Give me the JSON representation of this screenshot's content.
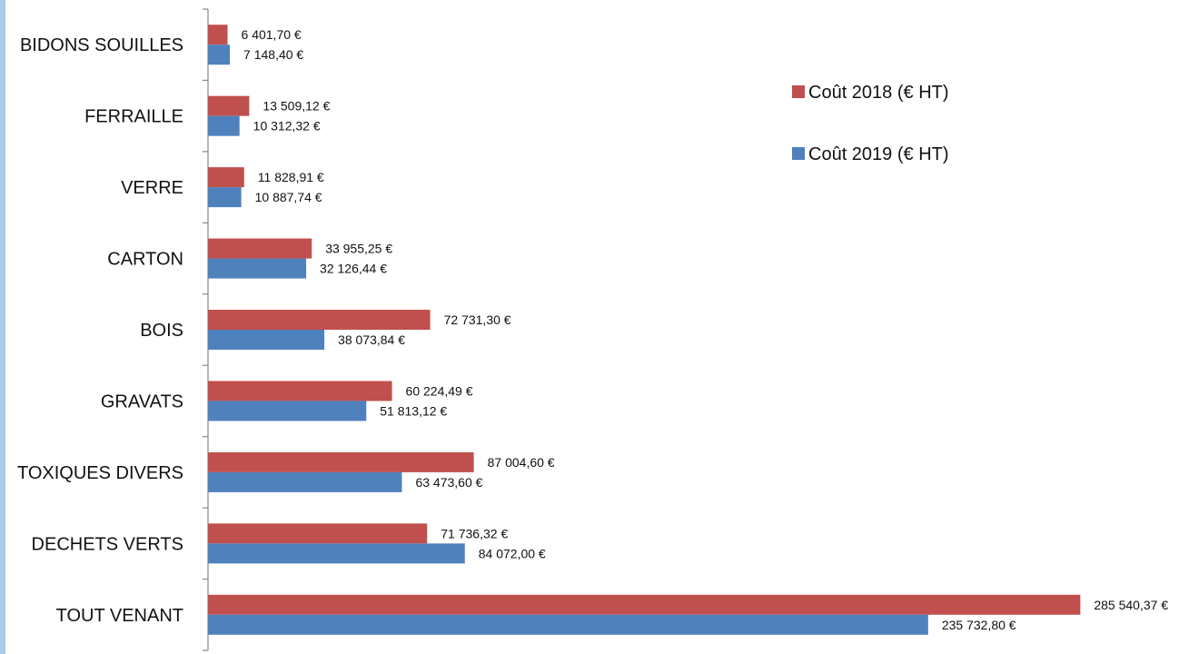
{
  "colors": {
    "series_2018": "#c0504d",
    "series_2019": "#4f81bd",
    "axis": "#888888",
    "side_strip": "#a9cce8"
  },
  "chart_data": {
    "type": "bar",
    "orientation": "horizontal",
    "title": "",
    "xlabel": "",
    "ylabel": "",
    "grid": false,
    "legend_position": "right",
    "xlim": [
      0,
      300000
    ],
    "categories": [
      "BIDONS SOUILLES",
      "FERRAILLE",
      "VERRE",
      "CARTON",
      "BOIS",
      "GRAVATS",
      "TOXIQUES DIVERS",
      "DECHETS VERTS",
      "TOUT VENANT"
    ],
    "series": [
      {
        "name": "Coût 2018 (€ HT)",
        "values": [
          6401.7,
          13509.12,
          11828.91,
          33955.25,
          72731.3,
          60224.49,
          87004.6,
          71736.32,
          285540.37
        ],
        "labels": [
          "6 401,70 €",
          "13 509,12 €",
          "11 828,91 €",
          "33 955,25 €",
          "72 731,30 €",
          "60 224,49 €",
          "87 004,60 €",
          "71 736,32 €",
          "285 540,37 €"
        ]
      },
      {
        "name": "Coût 2019 (€ HT)",
        "values": [
          7148.4,
          10312.32,
          10887.74,
          32126.44,
          38073.84,
          51813.12,
          63473.6,
          84072.0,
          235732.8
        ],
        "labels": [
          "7 148,40 €",
          "10 312,32 €",
          "10 887,74 €",
          "32 126,44 €",
          "38 073,84 €",
          "51 813,12 €",
          "63 473,60 €",
          "84 072,00 €",
          "235 732,80 €"
        ]
      }
    ]
  }
}
